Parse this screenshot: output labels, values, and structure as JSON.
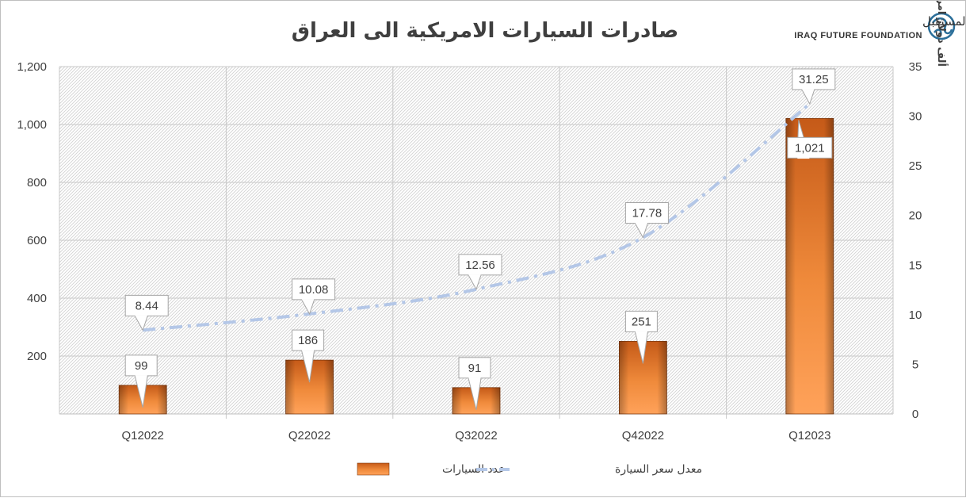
{
  "logo": {
    "arabic": "مؤسسة عراق المستقبل",
    "english": "IRAQ FUTURE FOUNDATION"
  },
  "chart_data": {
    "type": "bar",
    "title": "صادرات السيارات الامريكية الى العراق",
    "categories": [
      "Q12022",
      "Q22022",
      "Q32022",
      "Q42022",
      "Q12023"
    ],
    "y_left": {
      "min": 0,
      "max": 1200,
      "ticks": [
        "",
        "200",
        "400",
        "600",
        "800",
        "1,000",
        "1,200"
      ]
    },
    "y_right": {
      "min": 0,
      "max": 35,
      "ticks": [
        "0",
        "5",
        "10",
        "15",
        "20",
        "25",
        "30",
        "35"
      ],
      "label": "ألف دولار امريكي"
    },
    "series": [
      {
        "name": "عدد السيارات",
        "type": "bar",
        "axis": "left",
        "color": "#e57f31",
        "values": [
          99,
          186,
          91,
          251,
          1021
        ],
        "labels": [
          "99",
          "186",
          "91",
          "251",
          "1,021"
        ]
      },
      {
        "name": "معدل سعر السيارة",
        "type": "line",
        "axis": "right",
        "color": "#b4c7e7",
        "values": [
          8.44,
          10.08,
          12.56,
          17.78,
          31.25
        ],
        "labels": [
          "8.44",
          "10.08",
          "12.56",
          "17.78",
          "31.25"
        ]
      }
    ],
    "grid": true,
    "legend_position": "bottom"
  }
}
